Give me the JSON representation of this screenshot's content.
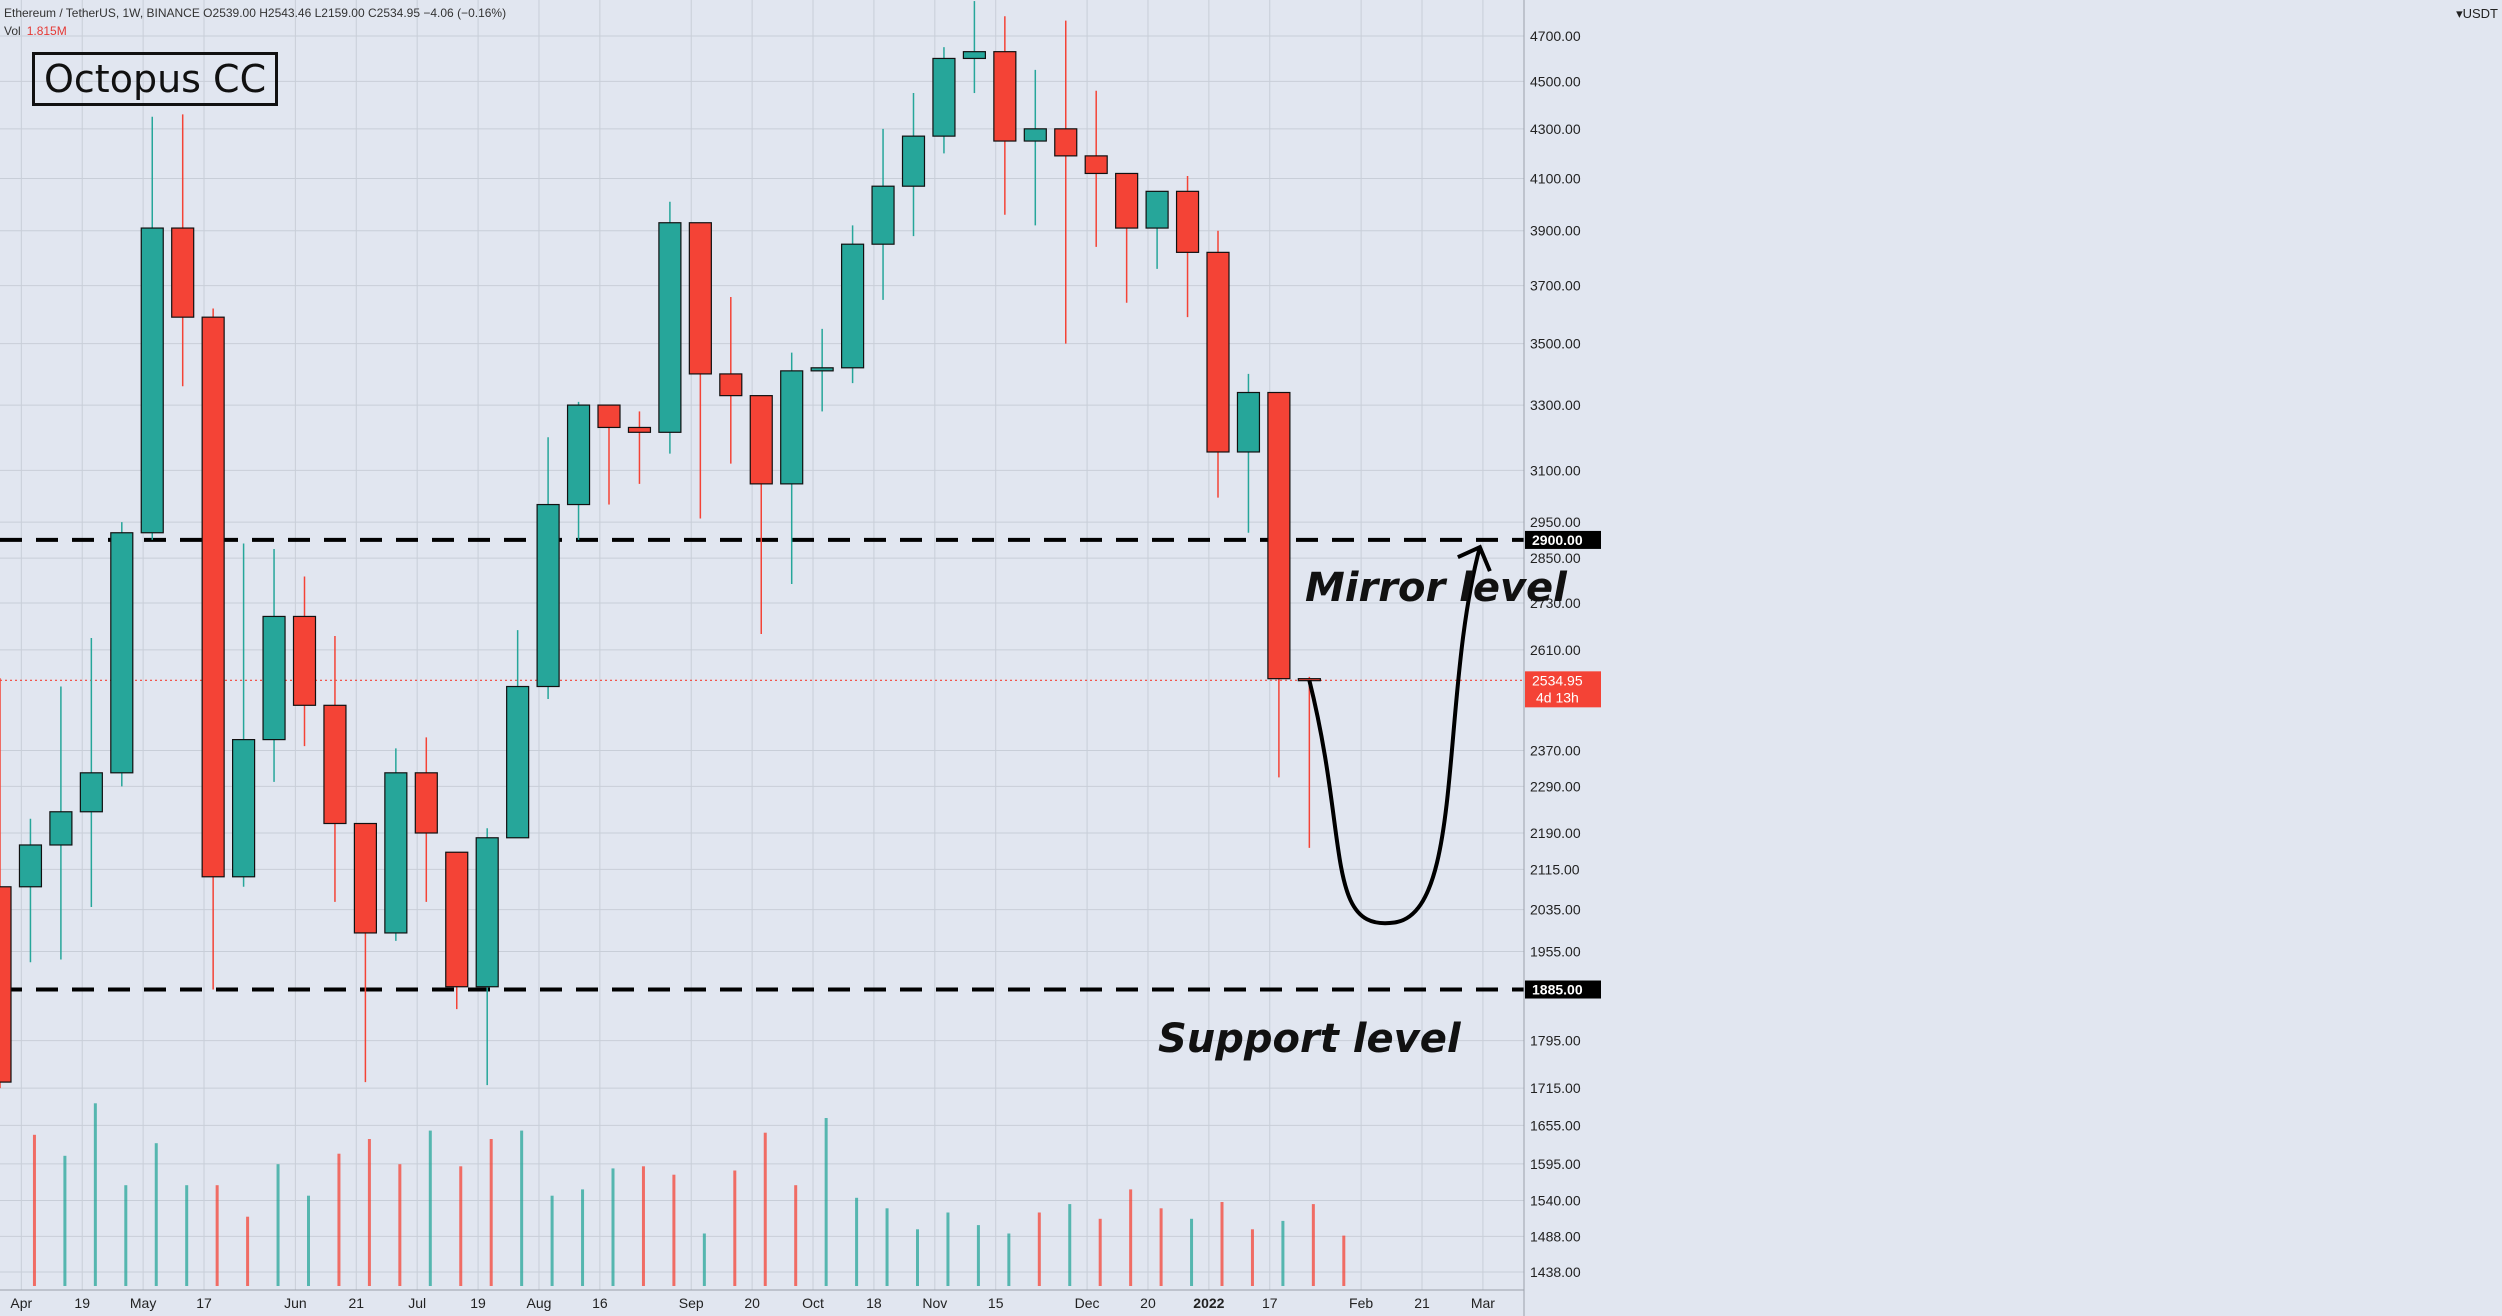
{
  "header": {
    "title": "Ethereum / TetherUS, 1W, BINANCE  O2539.00  H2543.46  L2159.00  C2534.95  −4.06 (−0.16%)",
    "vol_label": "Vol",
    "vol_value": "1.815M"
  },
  "brand": "Octopus CC",
  "currency": "USDT",
  "annotations": {
    "mirror": "Mirror level",
    "support": "Support level"
  },
  "colors": {
    "up": "#26a69a",
    "down": "#f44336",
    "background": "#e1e6f0",
    "grid": "#c8ced8"
  },
  "chart_data": {
    "type": "candlestick",
    "symbol": "Ethereum / TetherUS",
    "interval": "1W",
    "exchange": "BINANCE",
    "y_ticks": [
      4700,
      4500,
      4300,
      4100,
      3900,
      3700,
      3500,
      3300,
      3100,
      2950,
      2850,
      2730,
      2610,
      2370,
      2290,
      2190,
      2115,
      2035,
      1955,
      1795,
      1715,
      1655,
      1595,
      1540,
      1488,
      1438
    ],
    "y_tick_labels": [
      "4700.00",
      "4500.00",
      "4300.00",
      "4100.00",
      "3900.00",
      "3700.00",
      "3500.00",
      "3300.00",
      "3100.00",
      "2950.00",
      "2850.00",
      "2730.00",
      "2610.00",
      "2370.00",
      "2290.00",
      "2190.00",
      "2115.00",
      "2035.00",
      "1955.00",
      "1795.00",
      "1715.00",
      "1655.00",
      "1595.00",
      "1540.00",
      "1488.00",
      "1438.00"
    ],
    "x_labels": [
      {
        "i": 0.7,
        "label": "Apr"
      },
      {
        "i": 2.7,
        "label": "19"
      },
      {
        "i": 4.7,
        "label": "May"
      },
      {
        "i": 6.7,
        "label": "17"
      },
      {
        "i": 9.7,
        "label": "Jun"
      },
      {
        "i": 11.7,
        "label": "21"
      },
      {
        "i": 13.7,
        "label": "Jul"
      },
      {
        "i": 15.7,
        "label": "19"
      },
      {
        "i": 17.7,
        "label": "Aug"
      },
      {
        "i": 19.7,
        "label": "16"
      },
      {
        "i": 22.7,
        "label": "Sep"
      },
      {
        "i": 24.7,
        "label": "20"
      },
      {
        "i": 26.7,
        "label": "Oct"
      },
      {
        "i": 28.7,
        "label": "18"
      },
      {
        "i": 30.7,
        "label": "Nov"
      },
      {
        "i": 32.7,
        "label": "15"
      },
      {
        "i": 35.7,
        "label": "Dec"
      },
      {
        "i": 37.7,
        "label": "20"
      },
      {
        "i": 39.7,
        "label": "2022"
      },
      {
        "i": 41.7,
        "label": "17"
      },
      {
        "i": 44.7,
        "label": "Feb"
      },
      {
        "i": 46.7,
        "label": "21"
      },
      {
        "i": 48.7,
        "label": "Mar"
      }
    ],
    "candles": [
      {
        "o": 2080,
        "h": 2540,
        "l": 1715,
        "c": 1725
      },
      {
        "o": 2080,
        "h": 2220,
        "l": 1935,
        "c": 2165
      },
      {
        "o": 2165,
        "h": 2520,
        "l": 1940,
        "c": 2235
      },
      {
        "o": 2235,
        "h": 2640,
        "l": 2040,
        "c": 2320
      },
      {
        "o": 2320,
        "h": 2950,
        "l": 2290,
        "c": 2920
      },
      {
        "o": 2920,
        "h": 4350,
        "l": 2900,
        "c": 3910
      },
      {
        "o": 3910,
        "h": 4360,
        "l": 3360,
        "c": 3590
      },
      {
        "o": 3590,
        "h": 3620,
        "l": 1885,
        "c": 2100
      },
      {
        "o": 2100,
        "h": 2890,
        "l": 2080,
        "c": 2395
      },
      {
        "o": 2395,
        "h": 2875,
        "l": 2300,
        "c": 2695
      },
      {
        "o": 2695,
        "h": 2800,
        "l": 2380,
        "c": 2475
      },
      {
        "o": 2475,
        "h": 2645,
        "l": 2050,
        "c": 2210
      },
      {
        "o": 2210,
        "h": 2210,
        "l": 1725,
        "c": 1990
      },
      {
        "o": 1990,
        "h": 2375,
        "l": 1975,
        "c": 2320
      },
      {
        "o": 2320,
        "h": 2400,
        "l": 2050,
        "c": 2190
      },
      {
        "o": 2150,
        "h": 2150,
        "l": 1850,
        "c": 1890
      },
      {
        "o": 1890,
        "h": 2200,
        "l": 1720,
        "c": 2180
      },
      {
        "o": 2180,
        "h": 2660,
        "l": 2190,
        "c": 2520
      },
      {
        "o": 2520,
        "h": 3200,
        "l": 2490,
        "c": 3000
      },
      {
        "o": 3000,
        "h": 3310,
        "l": 2900,
        "c": 3300
      },
      {
        "o": 3300,
        "h": 3300,
        "l": 3000,
        "c": 3230
      },
      {
        "o": 3230,
        "h": 3280,
        "l": 3060,
        "c": 3215
      },
      {
        "o": 3215,
        "h": 4010,
        "l": 3150,
        "c": 3930
      },
      {
        "o": 3930,
        "h": 3930,
        "l": 2960,
        "c": 3400
      },
      {
        "o": 3400,
        "h": 3660,
        "l": 3120,
        "c": 3330
      },
      {
        "o": 3330,
        "h": 3320,
        "l": 2650,
        "c": 3060
      },
      {
        "o": 3060,
        "h": 3470,
        "l": 2780,
        "c": 3410
      },
      {
        "o": 3410,
        "h": 3550,
        "l": 3280,
        "c": 3420
      },
      {
        "o": 3420,
        "h": 3920,
        "l": 3370,
        "c": 3850
      },
      {
        "o": 3850,
        "h": 4300,
        "l": 3650,
        "c": 4070
      },
      {
        "o": 4070,
        "h": 4450,
        "l": 3880,
        "c": 4270
      },
      {
        "o": 4270,
        "h": 4650,
        "l": 4200,
        "c": 4600
      },
      {
        "o": 4600,
        "h": 4860,
        "l": 4450,
        "c": 4630
      },
      {
        "o": 4630,
        "h": 4790,
        "l": 3960,
        "c": 4250
      },
      {
        "o": 4250,
        "h": 4550,
        "l": 3920,
        "c": 4300
      },
      {
        "o": 4300,
        "h": 4770,
        "l": 3500,
        "c": 4190
      },
      {
        "o": 4190,
        "h": 4460,
        "l": 3840,
        "c": 4120
      },
      {
        "o": 4120,
        "h": 4120,
        "l": 3640,
        "c": 3910
      },
      {
        "o": 3910,
        "h": 4050,
        "l": 3760,
        "c": 4050
      },
      {
        "o": 4050,
        "h": 4110,
        "l": 3590,
        "c": 3820
      },
      {
        "o": 3820,
        "h": 3900,
        "l": 3020,
        "c": 3155
      },
      {
        "o": 3155,
        "h": 3400,
        "l": 2920,
        "c": 3340
      },
      {
        "o": 3340,
        "h": 3340,
        "l": 2310,
        "c": 2539
      },
      {
        "o": 2539,
        "h": 2543.46,
        "l": 2159,
        "c": 2534.95
      }
    ],
    "volume_relative": [
      0.72,
      0.62,
      0.87,
      0.48,
      0.68,
      0.48,
      0.48,
      0.33,
      0.58,
      0.43,
      0.63,
      0.7,
      0.58,
      0.74,
      0.57,
      0.7,
      0.74,
      0.43,
      0.46,
      0.56,
      0.57,
      0.53,
      0.25,
      0.55,
      0.73,
      0.48,
      0.8,
      0.42,
      0.37,
      0.27,
      0.35,
      0.29,
      0.25,
      0.35,
      0.39,
      0.32,
      0.46,
      0.37,
      0.32,
      0.4,
      0.27,
      0.31,
      0.39,
      0.24
    ],
    "levels": [
      {
        "price": 2900,
        "label": "2900.00",
        "name": "Mirror level"
      },
      {
        "price": 1885,
        "label": "1885.00",
        "name": "Support level"
      }
    ],
    "current_price": {
      "value": 2534.95,
      "label": "2534.95",
      "countdown": "4d 13h"
    },
    "projection": {
      "start_i": 43,
      "start_price": 2534.95,
      "low_price": 2010,
      "low_i": 45.8,
      "end_i": 48.6,
      "end_price": 2880
    }
  }
}
